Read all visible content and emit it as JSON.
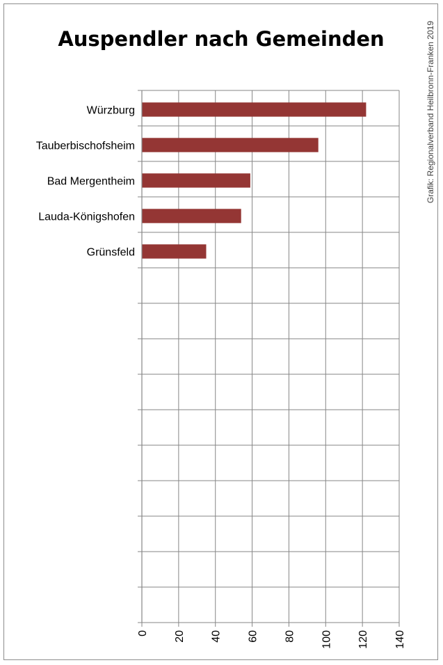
{
  "chart_data": {
    "type": "bar",
    "orientation": "horizontal",
    "title": "Auspendler nach Gemeinden",
    "categories": [
      "Würzburg",
      "Tauberbischofsheim",
      "Bad Mergentheim",
      "Lauda-Königshofen",
      "Grünsfeld"
    ],
    "values": [
      122,
      96,
      59,
      54,
      35
    ],
    "xlabel": "",
    "ylabel": "",
    "xlim": [
      0,
      140
    ],
    "xticks": [
      "0",
      "20",
      "40",
      "60",
      "80",
      "100",
      "120",
      "140"
    ],
    "category_slots": 15,
    "grid": true,
    "bar_color": "#943634",
    "grid_color": "#868686"
  },
  "credit": "Grafik: Regionalverband Heilbronn-Franken 2019"
}
